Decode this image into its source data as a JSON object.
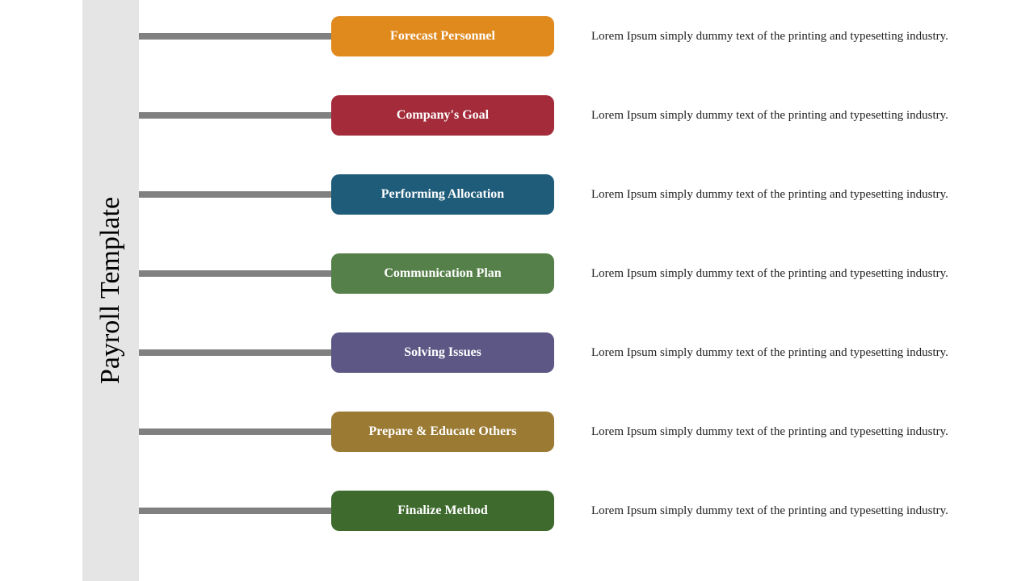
{
  "title": "Payroll Template",
  "sidebar_bg": "#e5e5e5",
  "connector_color": "#808080",
  "items": [
    {
      "label": "Forecast Personnel",
      "color": "#e08a1e",
      "desc": "Lorem Ipsum simply dummy text of the printing and typesetting industry."
    },
    {
      "label": "Company's Goal",
      "color": "#a32b3a",
      "desc": "Lorem Ipsum simply dummy text of the printing and typesetting industry."
    },
    {
      "label": "Performing Allocation",
      "color": "#1f5c7a",
      "desc": "Lorem Ipsum simply dummy text of the printing and typesetting industry."
    },
    {
      "label": "Communication Plan",
      "color": "#568049",
      "desc": "Lorem Ipsum simply dummy text of the printing and typesetting industry."
    },
    {
      "label": "Solving Issues",
      "color": "#5c5785",
      "desc": "Lorem Ipsum simply dummy text of the printing and typesetting industry."
    },
    {
      "label": "Prepare & Educate Others",
      "color": "#9b7a33",
      "desc": "Lorem Ipsum simply dummy text of the printing and typesetting industry."
    },
    {
      "label": "Finalize Method",
      "color": "#3e6a2e",
      "desc": "Lorem Ipsum simply dummy text of the printing and typesetting industry."
    }
  ],
  "styling": {
    "pill_width": 276,
    "pill_height": 50,
    "pill_radius": 10,
    "pill_fontsize": 16,
    "desc_fontsize": 15,
    "title_fontsize": 34,
    "row_gap": 48,
    "connector_height": 8,
    "connector_width": 238
  }
}
